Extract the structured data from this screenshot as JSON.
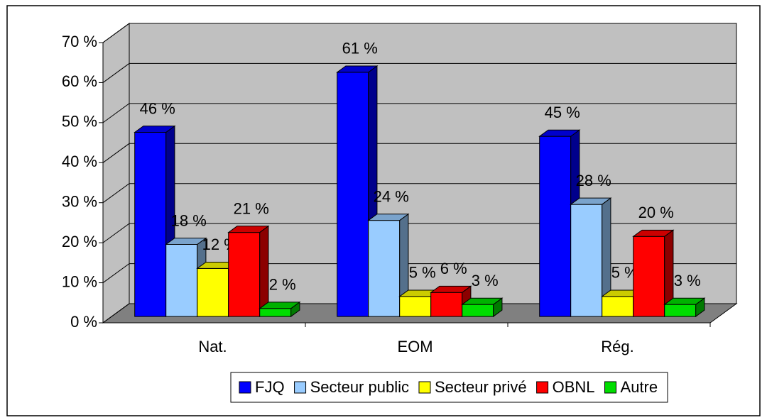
{
  "chart_data": {
    "type": "bar3d",
    "categories": [
      "Nat.",
      "EOM",
      "Rég."
    ],
    "series": [
      {
        "name": "FJQ",
        "color": "#0000ff",
        "values": [
          46,
          61,
          45
        ],
        "value_labels": [
          "46 %",
          "61 %",
          "45 %"
        ]
      },
      {
        "name": "Secteur public",
        "color": "#99ccff",
        "values": [
          18,
          24,
          28
        ],
        "value_labels": [
          "18 %",
          "24 %",
          "28 %"
        ]
      },
      {
        "name": "Secteur privé",
        "color": "#ffff00",
        "values": [
          12,
          5,
          5
        ],
        "value_labels": [
          "12 %",
          "5 %",
          "5 %"
        ]
      },
      {
        "name": "OBNL",
        "color": "#ff0000",
        "values": [
          21,
          6,
          20
        ],
        "value_labels": [
          "21 %",
          "6 %",
          "20 %"
        ]
      },
      {
        "name": "Autre",
        "color": "#00dd00",
        "values": [
          2,
          3,
          3
        ],
        "value_labels": [
          "2 %",
          "3 %",
          "3 %"
        ]
      }
    ],
    "ylim": [
      0,
      70
    ],
    "yticks": [
      {
        "value": 0,
        "label": "0 %"
      },
      {
        "value": 10,
        "label": "10 %"
      },
      {
        "value": 20,
        "label": "20 %"
      },
      {
        "value": 30,
        "label": "30 %"
      },
      {
        "value": 40,
        "label": "40 %"
      },
      {
        "value": 50,
        "label": "50 %"
      },
      {
        "value": 60,
        "label": "60 %"
      },
      {
        "value": 70,
        "label": "70 %"
      }
    ],
    "grid": true,
    "legend": "bottom"
  }
}
